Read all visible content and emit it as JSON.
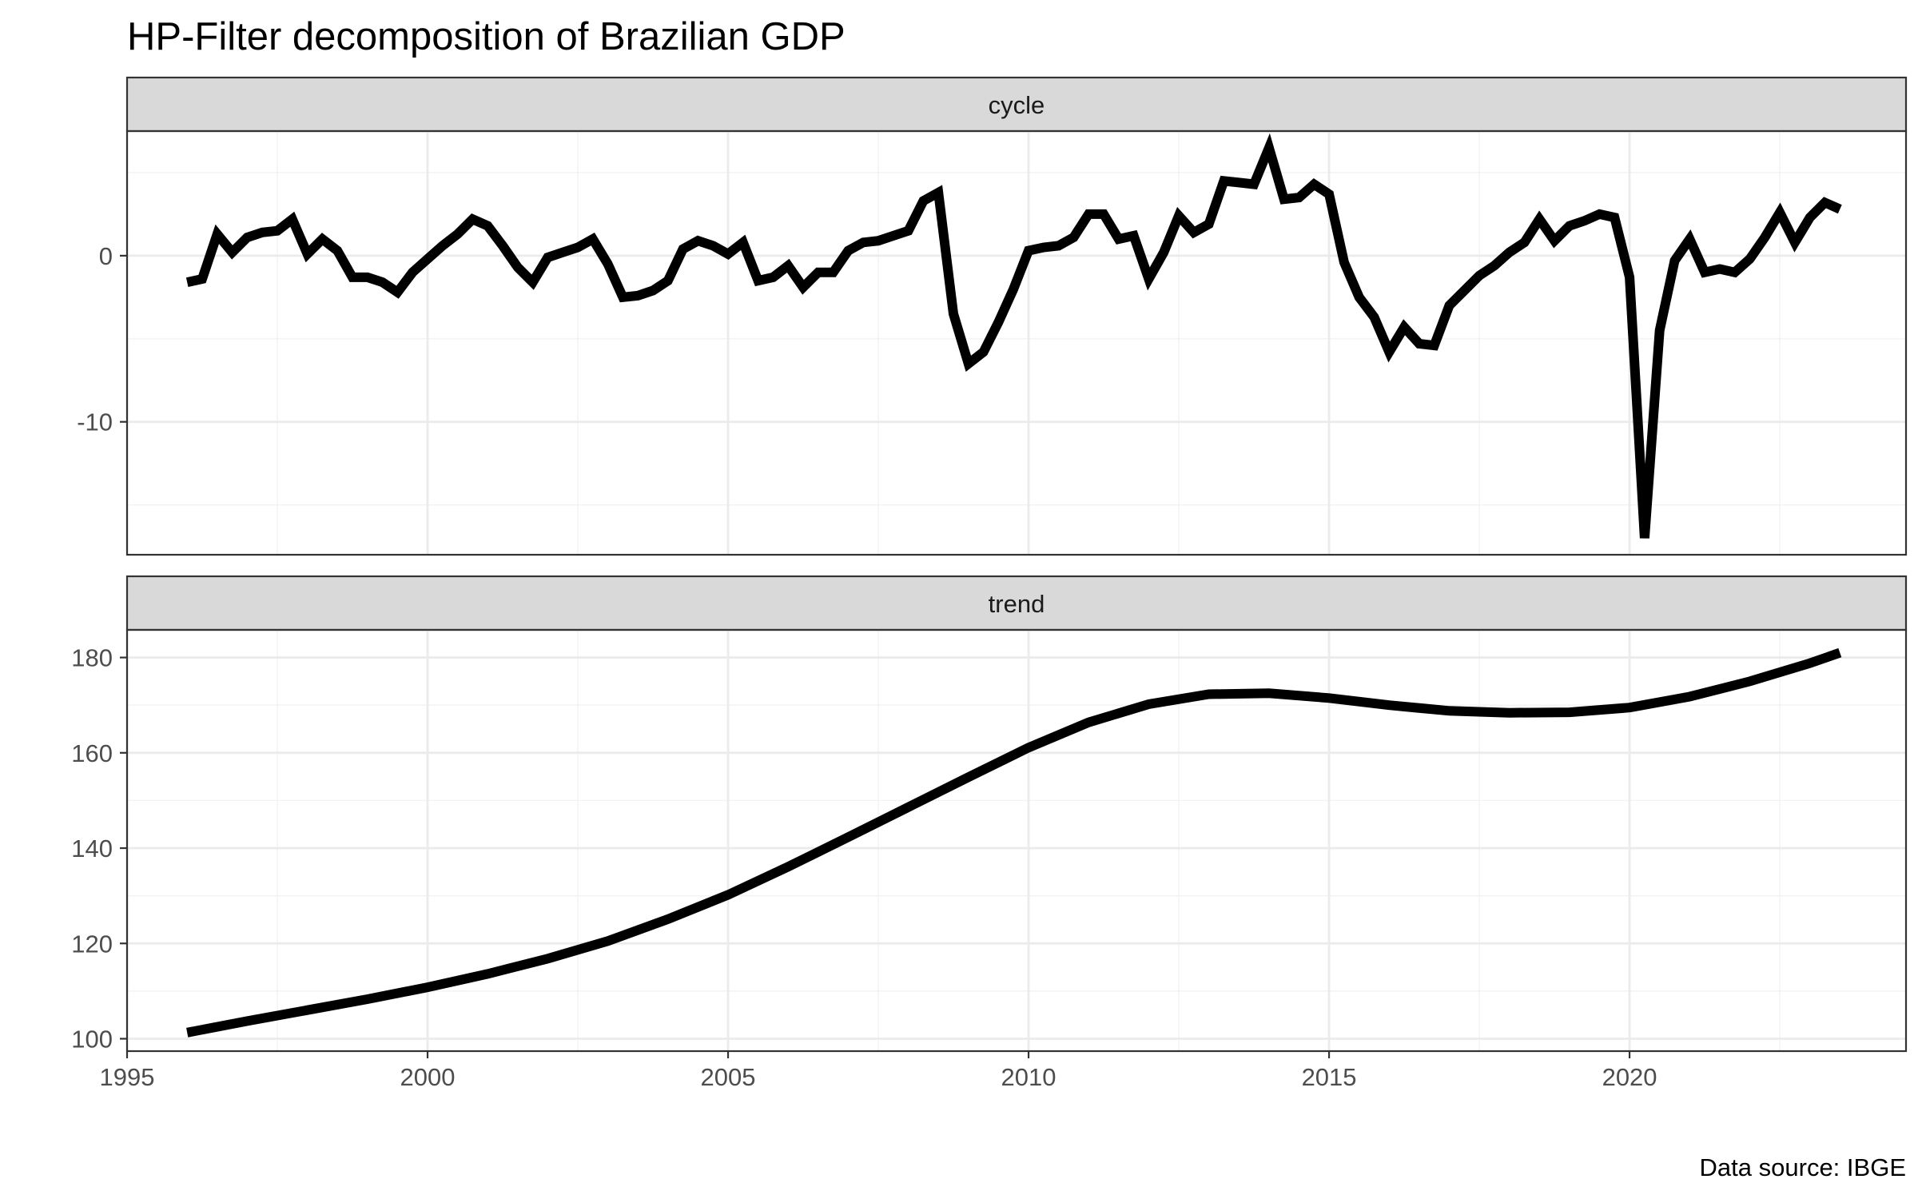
{
  "chart_data": {
    "type": "line",
    "title": "HP-Filter decomposition of Brazilian GDP",
    "caption": "Data source: IBGE",
    "x_range": [
      1995,
      2024.6
    ],
    "x_ticks": [
      1995,
      2000,
      2005,
      2010,
      2015,
      2020
    ],
    "x_tick_labels": [
      "1995",
      "2000",
      "2005",
      "2010",
      "2015",
      "2020"
    ],
    "grid": true,
    "legend": "none",
    "line_color": "#000000",
    "panels": [
      {
        "strip": "cycle",
        "y_range": [
          -18,
          7.5
        ],
        "y_ticks": [
          -10,
          0
        ],
        "y_tick_labels": [
          "-10",
          "0"
        ],
        "series": {
          "x": [
            1996.0,
            1996.25,
            1996.5,
            1996.75,
            1997.0,
            1997.25,
            1997.5,
            1997.75,
            1998.0,
            1998.25,
            1998.5,
            1998.75,
            1999.0,
            1999.25,
            1999.5,
            1999.75,
            2000.0,
            2000.25,
            2000.5,
            2000.75,
            2001.0,
            2001.25,
            2001.5,
            2001.75,
            2002.0,
            2002.25,
            2002.5,
            2002.75,
            2003.0,
            2003.25,
            2003.5,
            2003.75,
            2004.0,
            2004.25,
            2004.5,
            2004.75,
            2005.0,
            2005.25,
            2005.5,
            2005.75,
            2006.0,
            2006.25,
            2006.5,
            2006.75,
            2007.0,
            2007.25,
            2007.5,
            2007.75,
            2008.0,
            2008.25,
            2008.5,
            2008.75,
            2009.0,
            2009.25,
            2009.5,
            2009.75,
            2010.0,
            2010.25,
            2010.5,
            2010.75,
            2011.0,
            2011.25,
            2011.5,
            2011.75,
            2012.0,
            2012.25,
            2012.5,
            2012.75,
            2013.0,
            2013.25,
            2013.5,
            2013.75,
            2014.0,
            2014.25,
            2014.5,
            2014.75,
            2015.0,
            2015.25,
            2015.5,
            2015.75,
            2016.0,
            2016.25,
            2016.5,
            2016.75,
            2017.0,
            2017.25,
            2017.5,
            2017.75,
            2018.0,
            2018.25,
            2018.5,
            2018.75,
            2019.0,
            2019.25,
            2019.5,
            2019.75,
            2020.0,
            2020.25,
            2020.5,
            2020.75,
            2021.0,
            2021.25,
            2021.5,
            2021.75,
            2022.0,
            2022.25,
            2022.5,
            2022.75,
            2023.0,
            2023.25,
            2023.5
          ],
          "y": [
            -1.6,
            -1.4,
            1.3,
            0.2,
            1.1,
            1.4,
            1.5,
            2.2,
            0.1,
            1.0,
            0.3,
            -1.3,
            -1.3,
            -1.6,
            -2.2,
            -1.0,
            -0.2,
            0.6,
            1.3,
            2.2,
            1.8,
            0.6,
            -0.7,
            -1.6,
            -0.1,
            0.2,
            0.5,
            1.0,
            -0.5,
            -2.5,
            -2.4,
            -2.1,
            -1.5,
            0.4,
            0.9,
            0.6,
            0.1,
            0.8,
            -1.5,
            -1.3,
            -0.6,
            -1.9,
            -1.0,
            -1.0,
            0.3,
            0.8,
            0.9,
            1.2,
            1.5,
            3.3,
            3.8,
            -3.5,
            -6.5,
            -5.8,
            -4.0,
            -2.0,
            0.3,
            0.5,
            0.6,
            1.1,
            2.5,
            2.5,
            1.0,
            1.2,
            -1.4,
            0.2,
            2.4,
            1.4,
            1.9,
            4.5,
            4.4,
            4.3,
            6.5,
            3.4,
            3.5,
            4.3,
            3.7,
            -0.4,
            -2.5,
            -3.7,
            -5.8,
            -4.3,
            -5.3,
            -5.4,
            -3.0,
            -2.1,
            -1.2,
            -0.6,
            0.2,
            0.8,
            2.2,
            0.9,
            1.8,
            2.1,
            2.5,
            2.3,
            -1.3,
            -17.0,
            -4.5,
            -0.3,
            1.0,
            -1.0,
            -0.8,
            -1.0,
            -0.2,
            1.1,
            2.6,
            0.8,
            2.3,
            3.2,
            2.8
          ]
        }
      },
      {
        "strip": "trend",
        "y_range": [
          97.4,
          185.8
        ],
        "y_ticks": [
          100,
          120,
          140,
          160,
          180
        ],
        "y_tick_labels": [
          "100",
          "120",
          "140",
          "160",
          "180"
        ],
        "series": {
          "x": [
            1996.0,
            1997.0,
            1998.0,
            1999.0,
            2000.0,
            2001.0,
            2002.0,
            2003.0,
            2004.0,
            2005.0,
            2006.0,
            2007.0,
            2008.0,
            2009.0,
            2010.0,
            2011.0,
            2012.0,
            2013.0,
            2014.0,
            2015.0,
            2016.0,
            2017.0,
            2018.0,
            2019.0,
            2020.0,
            2021.0,
            2022.0,
            2023.0,
            2023.5
          ],
          "y": [
            101.3,
            103.7,
            106.0,
            108.3,
            110.8,
            113.6,
            116.8,
            120.5,
            125.1,
            130.2,
            136.1,
            142.3,
            148.6,
            154.9,
            161.1,
            166.4,
            170.2,
            172.3,
            172.5,
            171.5,
            170.0,
            168.8,
            168.4,
            168.5,
            169.5,
            171.8,
            175.0,
            178.8,
            181.0
          ]
        }
      }
    ]
  }
}
